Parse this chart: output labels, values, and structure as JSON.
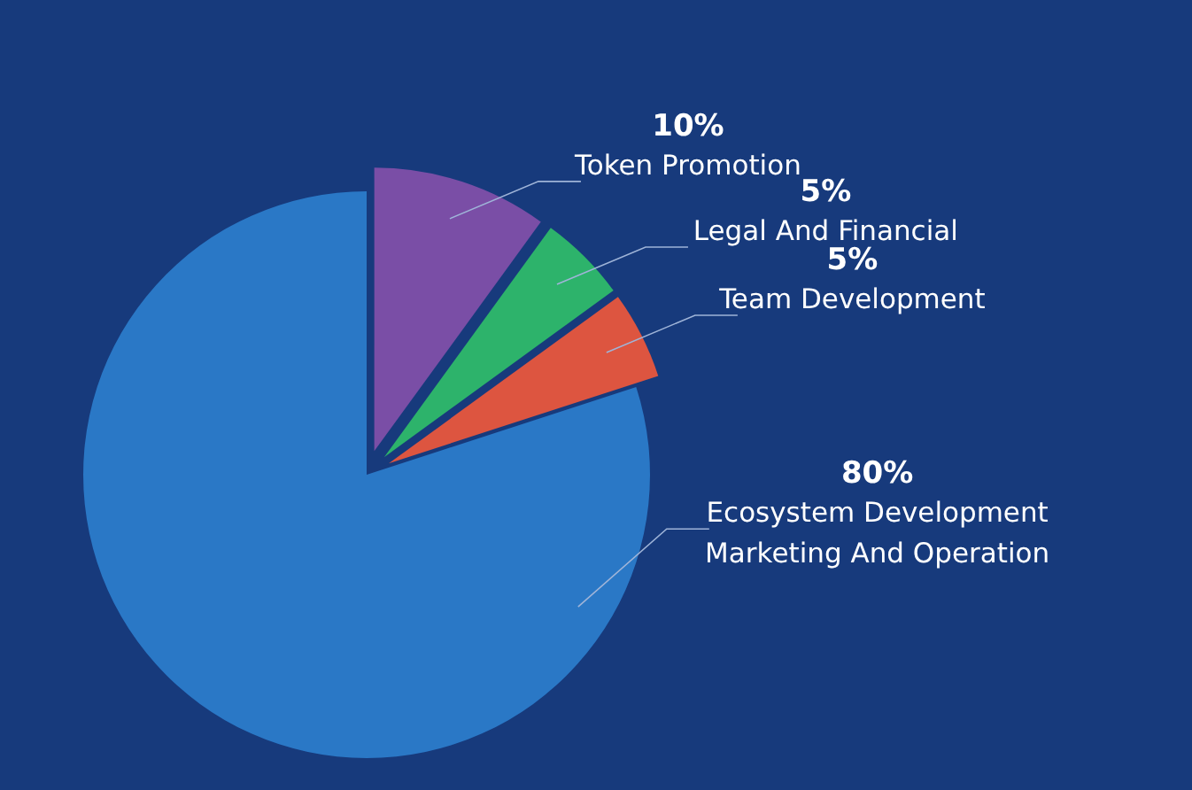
{
  "chart_data": {
    "type": "pie",
    "categories": [
      "Token Promotion",
      "Legal And Financial",
      "Team Development",
      "Ecosystem Development\nMarketing And Operation"
    ],
    "values": [
      10,
      5,
      5,
      80
    ],
    "colors": [
      "#7a4ea6",
      "#2db36b",
      "#dd5540",
      "#2a78c6"
    ],
    "value_labels": [
      "10%",
      "5%",
      "5%",
      "80%"
    ]
  }
}
